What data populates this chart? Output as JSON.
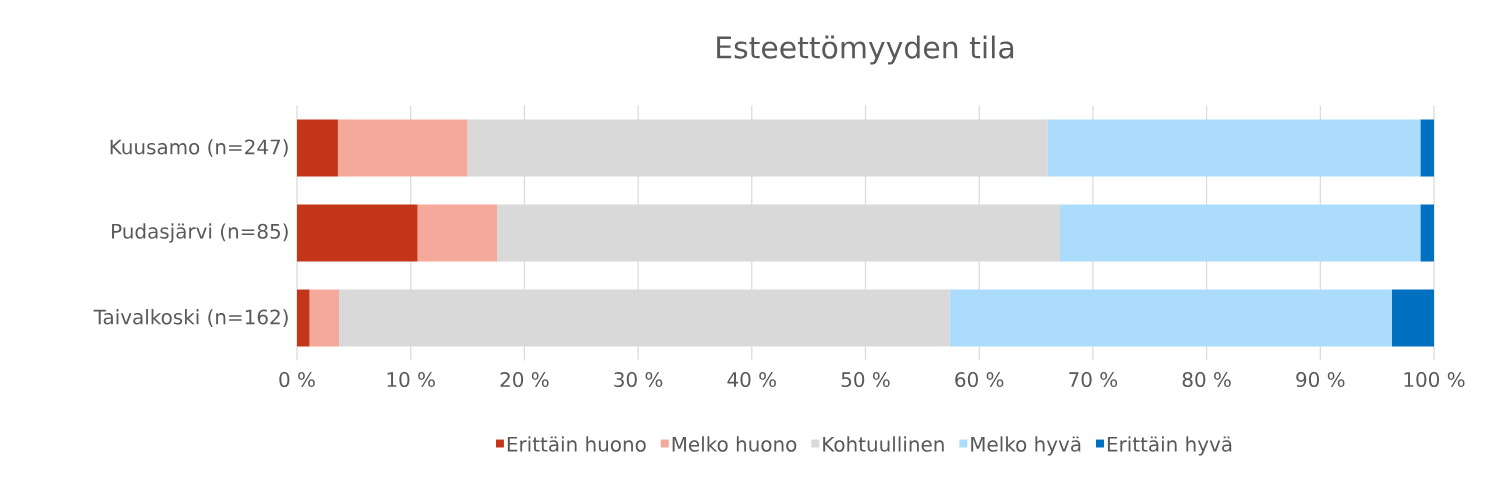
{
  "chart_data": {
    "type": "bar",
    "orientation": "horizontal",
    "stacked": true,
    "title": "Esteettömyyden tila",
    "categories": [
      "Kuusamo (n=247)",
      "Pudasjärvi (n=85)",
      "Taivalkoski (n=162)"
    ],
    "series": [
      {
        "name": "Erittäin huono",
        "color": "#c4361a",
        "values": [
          3.6,
          10.6,
          1.1
        ]
      },
      {
        "name": "Melko huono",
        "color": "#f4a99b",
        "values": [
          11.4,
          7.0,
          2.6
        ]
      },
      {
        "name": "Kohtuullinen",
        "color": "#d9d9d9",
        "values": [
          51.0,
          49.5,
          53.7
        ]
      },
      {
        "name": "Melko hyvä",
        "color": "#acdcfc",
        "values": [
          32.8,
          31.7,
          38.9
        ]
      },
      {
        "name": "Erittäin hyvä",
        "color": "#0070c0",
        "values": [
          1.2,
          1.2,
          3.7
        ]
      }
    ],
    "xlim": [
      0,
      100
    ],
    "xticks": [
      {
        "value": 0,
        "label": "0 %"
      },
      {
        "value": 10,
        "label": "10 %"
      },
      {
        "value": 20,
        "label": "20 %"
      },
      {
        "value": 30,
        "label": "30 %"
      },
      {
        "value": 40,
        "label": "40 %"
      },
      {
        "value": 50,
        "label": "50 %"
      },
      {
        "value": 60,
        "label": "60 %"
      },
      {
        "value": 70,
        "label": "70 %"
      },
      {
        "value": 80,
        "label": "80 %"
      },
      {
        "value": 90,
        "label": "90 %"
      },
      {
        "value": 100,
        "label": "100 %"
      }
    ],
    "grid": "x",
    "legend": "bottom"
  }
}
